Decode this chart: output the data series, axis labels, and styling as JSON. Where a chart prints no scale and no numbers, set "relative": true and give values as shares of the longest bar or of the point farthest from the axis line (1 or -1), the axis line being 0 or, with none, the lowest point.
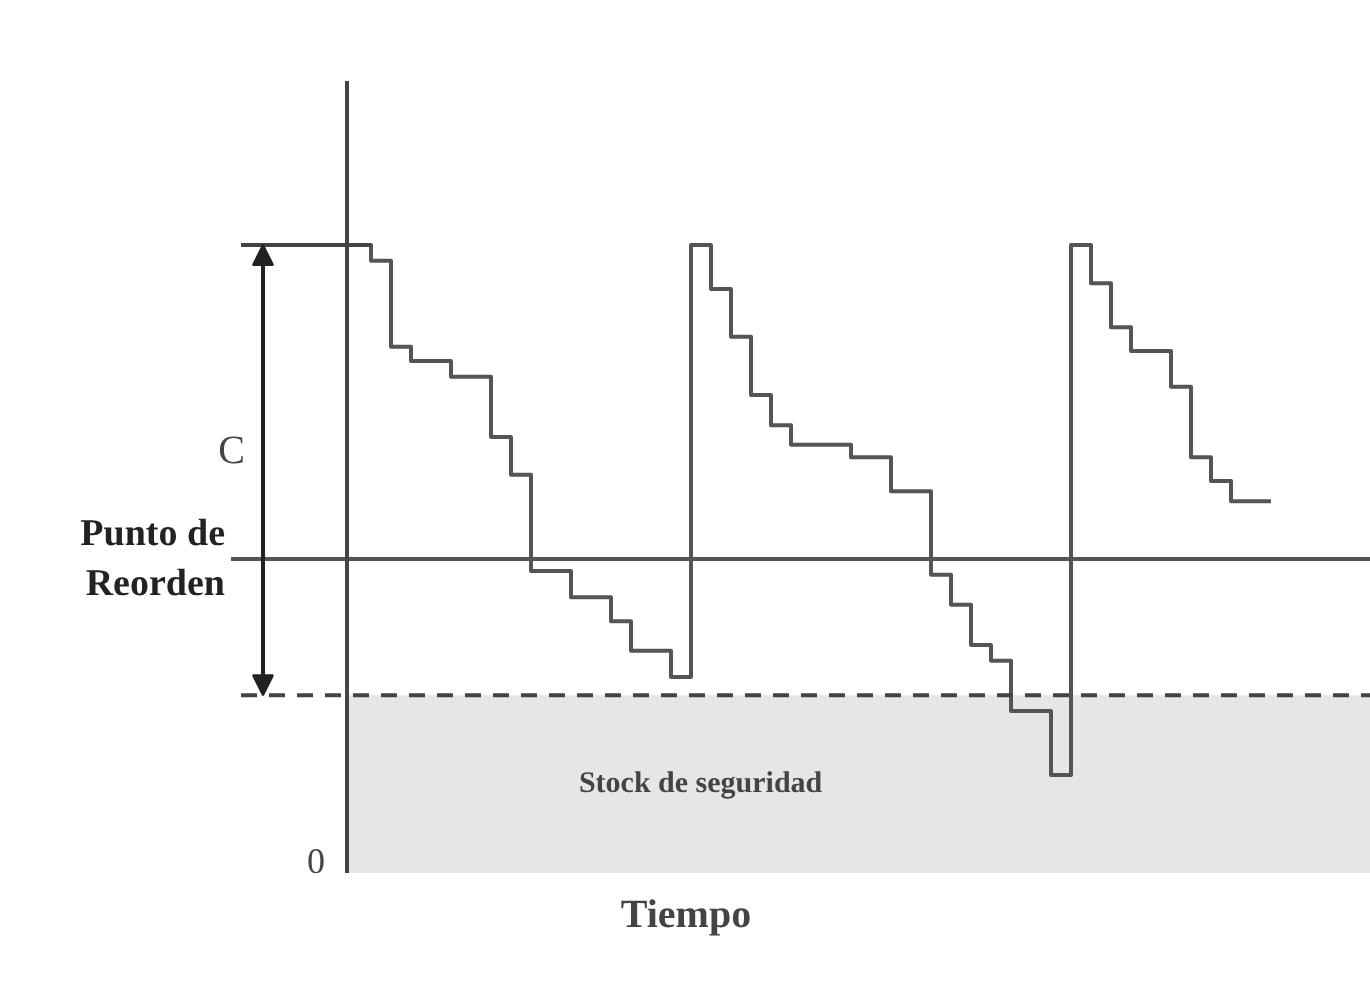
{
  "chart_data": {
    "type": "step",
    "relative": true,
    "xlabel": "Tiempo",
    "categories": [
      null,
      null,
      null,
      null,
      null,
      null,
      null,
      null,
      null,
      null,
      null,
      null,
      null,
      null,
      null,
      null,
      null,
      null,
      null,
      null,
      null,
      null,
      null,
      null,
      null,
      null,
      null,
      null,
      null,
      null,
      null,
      null,
      null,
      null,
      null,
      null,
      null,
      null,
      null,
      null,
      null,
      null,
      null,
      null,
      null,
      null,
      null
    ],
    "series": [
      {
        "color": "#555555",
        "values": [
          1.0,
          0.975,
          0.838,
          0.815,
          0.815,
          0.79,
          0.79,
          0.694,
          0.634,
          0.481,
          0.481,
          0.439,
          0.439,
          0.401,
          0.354,
          0.354,
          0.312,
          1.0,
          0.93,
          0.854,
          0.761,
          0.713,
          0.682,
          0.682,
          0.682,
          0.662,
          0.662,
          0.608,
          0.608,
          0.475,
          0.427,
          0.363,
          0.338,
          0.258,
          0.258,
          0.156,
          1.0,
          0.939,
          0.869,
          0.831,
          0.831,
          0.774,
          0.662,
          0.624,
          0.592,
          0.592,
          0.592
        ]
      }
    ],
    "ref_lines": [
      {
        "axis": "y",
        "value": 0.5,
        "label": "Punto de Reorden",
        "color": "#555555",
        "line_style": "solid"
      },
      {
        "axis": "y",
        "value": 0.283,
        "color": "#444444",
        "line_style": "dashed"
      }
    ],
    "bands": [
      {
        "axis": "y",
        "from": 0,
        "to": 0.283,
        "label": "Stock de seguridad",
        "color": "#e6e6e6"
      }
    ],
    "annotations": [
      "C",
      "0"
    ],
    "grid": false
  }
}
